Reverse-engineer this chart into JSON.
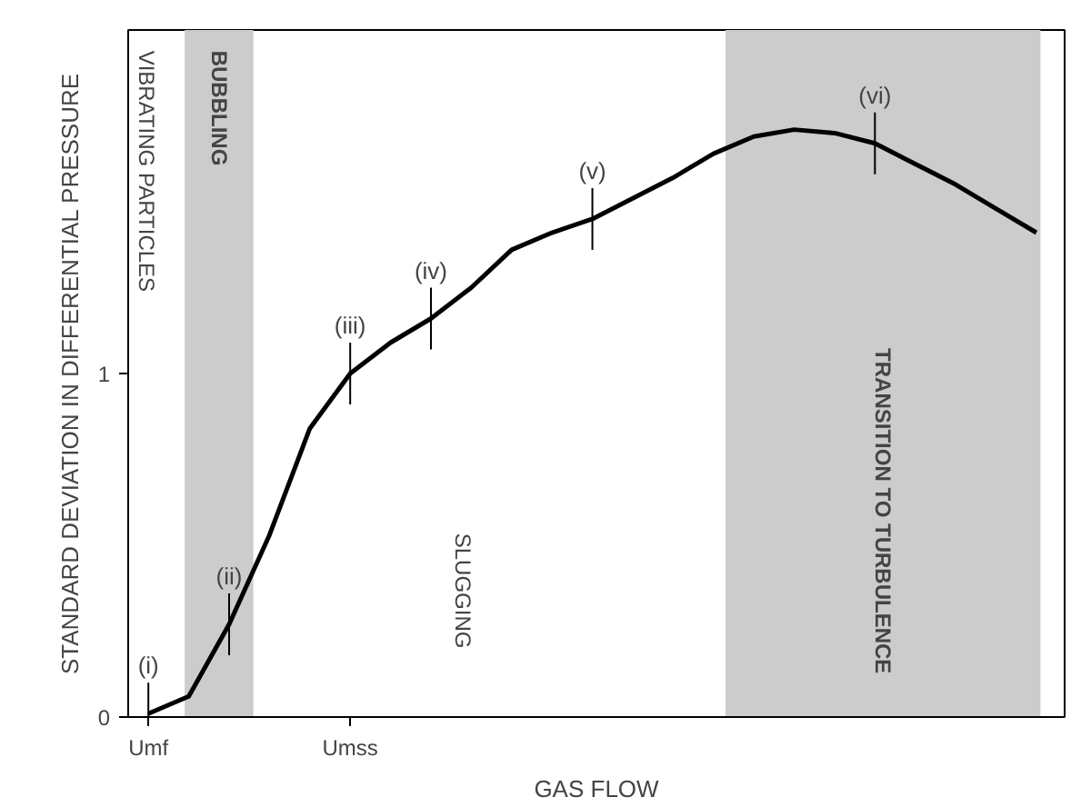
{
  "chart_data": {
    "type": "line",
    "xlabel": "GAS FLOW",
    "ylabel": "STANDARD DEVIATION IN DIFFERENTIAL PRESSURE",
    "categories": [
      "Umf",
      null,
      null,
      null,
      null,
      "Umss",
      null,
      null,
      null,
      null,
      null,
      null,
      null,
      null,
      null,
      null,
      null,
      null,
      null,
      null,
      null,
      null,
      null
    ],
    "series": [
      {
        "color": "#000000",
        "values": [
          0.01,
          0.06,
          0.27,
          0.53,
          0.84,
          1.0,
          1.09,
          1.16,
          1.25,
          1.36,
          1.41,
          1.45,
          1.51,
          1.57,
          1.64,
          1.69,
          1.71,
          1.7,
          1.67,
          1.61,
          1.55,
          1.48,
          1.41
        ],
        "value_labels": [
          "(i)",
          null,
          "(ii)",
          null,
          null,
          "(iii)",
          null,
          "(iv)",
          null,
          null,
          null,
          "(v)",
          null,
          null,
          null,
          null,
          null,
          null,
          "(vi)",
          null,
          null,
          null,
          null
        ]
      }
    ],
    "ylim": [
      0,
      2.0
    ],
    "yticks": [
      0,
      1
    ],
    "annotations": [
      "VIBRATING PARTICLES",
      "BUBBLING",
      "SLUGGING",
      "TRANSITION TO TURBULENCE"
    ],
    "grid": false,
    "marker": "none",
    "line_style": "solid"
  }
}
